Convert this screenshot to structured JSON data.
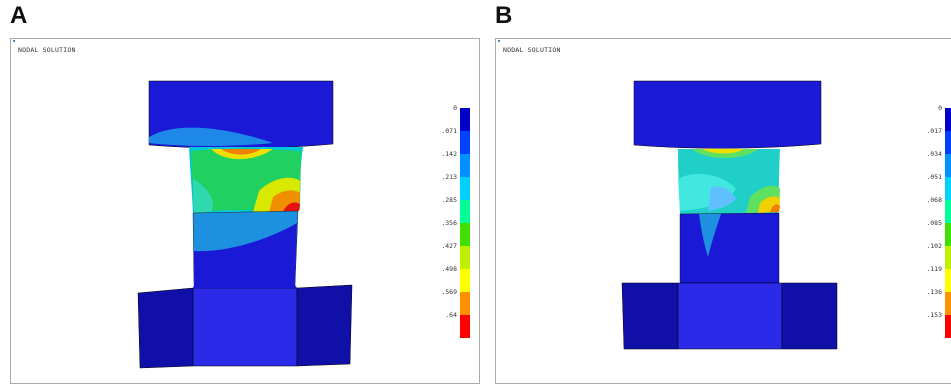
{
  "panels": [
    {
      "letter": "A",
      "title": "NODAL SOLUTION",
      "scale_labels": [
        "0",
        ".071",
        ".142",
        ".213",
        ".285",
        ".356",
        ".427",
        ".498",
        ".569",
        ".64"
      ]
    },
    {
      "letter": "B",
      "title": "NODAL SOLUTION",
      "scale_labels": [
        "0",
        ".017",
        ".034",
        ".051",
        ".068",
        ".085",
        ".102",
        ".119",
        ".136",
        ".153"
      ]
    }
  ],
  "colors": {
    "contour_scale": [
      "#0000c8",
      "#0040ff",
      "#0090ff",
      "#00d0ff",
      "#00ff99",
      "#40e000",
      "#c0f000",
      "#ffff00",
      "#ff9000",
      "#ff0000"
    ],
    "model_blue": "#1a1ad6",
    "model_dark": "#1010a8",
    "model_light": "#2a2ae8"
  }
}
